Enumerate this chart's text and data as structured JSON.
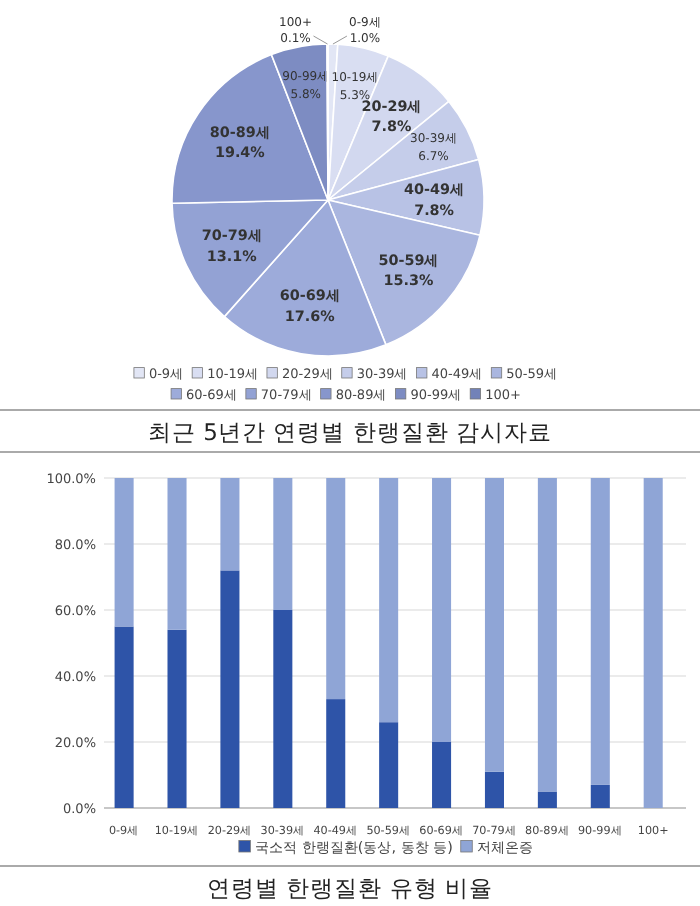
{
  "chart_data": [
    {
      "type": "pie",
      "title": "최근 5년간 연령별 한랭질환 감시자료",
      "categories": [
        "0-9세",
        "10-19세",
        "20-29세",
        "30-39세",
        "40-49세",
        "50-59세",
        "60-69세",
        "70-79세",
        "80-89세",
        "90-99세",
        "100+"
      ],
      "values": [
        1.0,
        5.3,
        7.8,
        6.7,
        7.8,
        15.3,
        17.6,
        13.1,
        19.4,
        5.8,
        0.1
      ],
      "value_labels": [
        "1.0%",
        "5.3%",
        "7.8%",
        "6.7%",
        "7.8%",
        "15.3%",
        "17.6%",
        "13.1%",
        "19.4%",
        "5.8%",
        "0.1%"
      ],
      "colors": [
        "#e2e6f5",
        "#d9def2",
        "#d2d8ef",
        "#c5cdea",
        "#b8c2e5",
        "#aab6df",
        "#9dabda",
        "#93a2d4",
        "#8796cc",
        "#7d8cc2",
        "#7282b8"
      ],
      "legend": "bottom"
    },
    {
      "type": "bar",
      "title": "연령별 한랭질환 유형 비율",
      "stacked": true,
      "categories": [
        "0-9세",
        "10-19세",
        "20-29세",
        "30-39세",
        "40-49세",
        "50-59세",
        "60-69세",
        "70-79세",
        "80-89세",
        "90-99세",
        "100+"
      ],
      "series": [
        {
          "name": "국소적 한랭질환(동상, 동창 등)",
          "color": "#2e54a8",
          "values": [
            55,
            54,
            72,
            60,
            33,
            26,
            20,
            11,
            5,
            7,
            0
          ]
        },
        {
          "name": "저체온증",
          "color": "#8fa5d6",
          "values": [
            45,
            46,
            28,
            40,
            67,
            74,
            80,
            89,
            95,
            93,
            100
          ]
        }
      ],
      "ylim": [
        0,
        100
      ],
      "yticks": [
        {
          "value": 0,
          "label": "0.0%"
        },
        {
          "value": 20,
          "label": "20.0%"
        },
        {
          "value": 40,
          "label": "40.0%"
        },
        {
          "value": 60,
          "label": "60.0%"
        },
        {
          "value": 80,
          "label": "80.0%"
        },
        {
          "value": 100,
          "label": "100.0%"
        }
      ],
      "grid": "y",
      "legend": "bottom"
    }
  ]
}
